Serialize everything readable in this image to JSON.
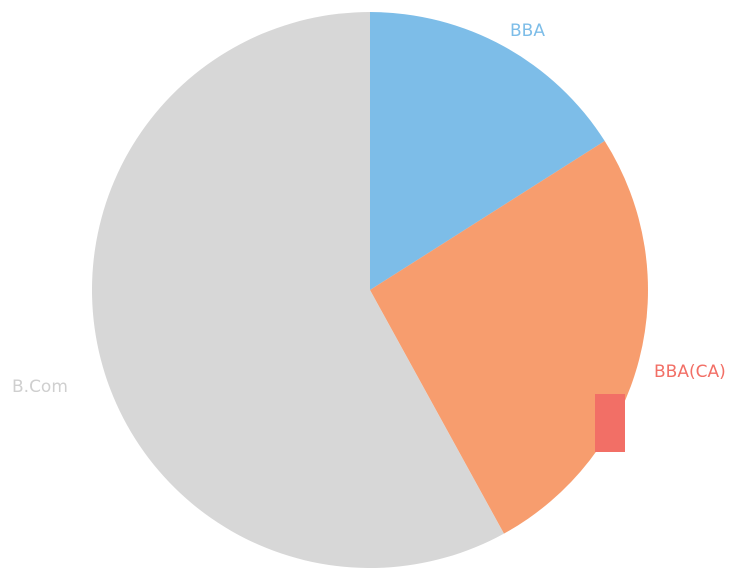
{
  "chart_data": {
    "type": "pie",
    "title": "",
    "slices": [
      {
        "label": "BBA",
        "value": 16,
        "color": "#7dbde8"
      },
      {
        "label": "BBA(CA)",
        "value": 26,
        "color": "#f79d6e"
      },
      {
        "label": "B.Com",
        "value": 58,
        "color": "#d7d7d7"
      }
    ],
    "label_colors": {
      "BBA": "#7dbde8",
      "BBA(CA)": "#f26f66",
      "B.Com": "#cfcfcf"
    },
    "start_angle_deg": 0,
    "direction": "clockwise",
    "legend": "none"
  }
}
